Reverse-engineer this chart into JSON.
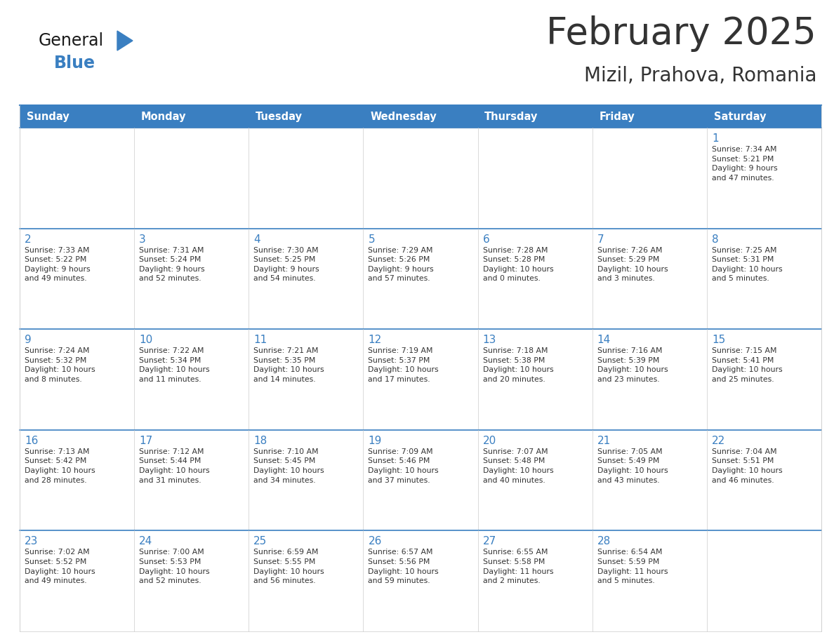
{
  "title": "February 2025",
  "subtitle": "Mizil, Prahova, Romania",
  "header_bg": "#3A7FC1",
  "header_text": "#FFFFFF",
  "cell_bg": "#FFFFFF",
  "border_color": "#3A7FC1",
  "text_color": "#333333",
  "day_number_color": "#3A7FC1",
  "days_of_week": [
    "Sunday",
    "Monday",
    "Tuesday",
    "Wednesday",
    "Thursday",
    "Friday",
    "Saturday"
  ],
  "weeks": [
    [
      {
        "day": "",
        "info": ""
      },
      {
        "day": "",
        "info": ""
      },
      {
        "day": "",
        "info": ""
      },
      {
        "day": "",
        "info": ""
      },
      {
        "day": "",
        "info": ""
      },
      {
        "day": "",
        "info": ""
      },
      {
        "day": "1",
        "info": "Sunrise: 7:34 AM\nSunset: 5:21 PM\nDaylight: 9 hours\nand 47 minutes."
      }
    ],
    [
      {
        "day": "2",
        "info": "Sunrise: 7:33 AM\nSunset: 5:22 PM\nDaylight: 9 hours\nand 49 minutes."
      },
      {
        "day": "3",
        "info": "Sunrise: 7:31 AM\nSunset: 5:24 PM\nDaylight: 9 hours\nand 52 minutes."
      },
      {
        "day": "4",
        "info": "Sunrise: 7:30 AM\nSunset: 5:25 PM\nDaylight: 9 hours\nand 54 minutes."
      },
      {
        "day": "5",
        "info": "Sunrise: 7:29 AM\nSunset: 5:26 PM\nDaylight: 9 hours\nand 57 minutes."
      },
      {
        "day": "6",
        "info": "Sunrise: 7:28 AM\nSunset: 5:28 PM\nDaylight: 10 hours\nand 0 minutes."
      },
      {
        "day": "7",
        "info": "Sunrise: 7:26 AM\nSunset: 5:29 PM\nDaylight: 10 hours\nand 3 minutes."
      },
      {
        "day": "8",
        "info": "Sunrise: 7:25 AM\nSunset: 5:31 PM\nDaylight: 10 hours\nand 5 minutes."
      }
    ],
    [
      {
        "day": "9",
        "info": "Sunrise: 7:24 AM\nSunset: 5:32 PM\nDaylight: 10 hours\nand 8 minutes."
      },
      {
        "day": "10",
        "info": "Sunrise: 7:22 AM\nSunset: 5:34 PM\nDaylight: 10 hours\nand 11 minutes."
      },
      {
        "day": "11",
        "info": "Sunrise: 7:21 AM\nSunset: 5:35 PM\nDaylight: 10 hours\nand 14 minutes."
      },
      {
        "day": "12",
        "info": "Sunrise: 7:19 AM\nSunset: 5:37 PM\nDaylight: 10 hours\nand 17 minutes."
      },
      {
        "day": "13",
        "info": "Sunrise: 7:18 AM\nSunset: 5:38 PM\nDaylight: 10 hours\nand 20 minutes."
      },
      {
        "day": "14",
        "info": "Sunrise: 7:16 AM\nSunset: 5:39 PM\nDaylight: 10 hours\nand 23 minutes."
      },
      {
        "day": "15",
        "info": "Sunrise: 7:15 AM\nSunset: 5:41 PM\nDaylight: 10 hours\nand 25 minutes."
      }
    ],
    [
      {
        "day": "16",
        "info": "Sunrise: 7:13 AM\nSunset: 5:42 PM\nDaylight: 10 hours\nand 28 minutes."
      },
      {
        "day": "17",
        "info": "Sunrise: 7:12 AM\nSunset: 5:44 PM\nDaylight: 10 hours\nand 31 minutes."
      },
      {
        "day": "18",
        "info": "Sunrise: 7:10 AM\nSunset: 5:45 PM\nDaylight: 10 hours\nand 34 minutes."
      },
      {
        "day": "19",
        "info": "Sunrise: 7:09 AM\nSunset: 5:46 PM\nDaylight: 10 hours\nand 37 minutes."
      },
      {
        "day": "20",
        "info": "Sunrise: 7:07 AM\nSunset: 5:48 PM\nDaylight: 10 hours\nand 40 minutes."
      },
      {
        "day": "21",
        "info": "Sunrise: 7:05 AM\nSunset: 5:49 PM\nDaylight: 10 hours\nand 43 minutes."
      },
      {
        "day": "22",
        "info": "Sunrise: 7:04 AM\nSunset: 5:51 PM\nDaylight: 10 hours\nand 46 minutes."
      }
    ],
    [
      {
        "day": "23",
        "info": "Sunrise: 7:02 AM\nSunset: 5:52 PM\nDaylight: 10 hours\nand 49 minutes."
      },
      {
        "day": "24",
        "info": "Sunrise: 7:00 AM\nSunset: 5:53 PM\nDaylight: 10 hours\nand 52 minutes."
      },
      {
        "day": "25",
        "info": "Sunrise: 6:59 AM\nSunset: 5:55 PM\nDaylight: 10 hours\nand 56 minutes."
      },
      {
        "day": "26",
        "info": "Sunrise: 6:57 AM\nSunset: 5:56 PM\nDaylight: 10 hours\nand 59 minutes."
      },
      {
        "day": "27",
        "info": "Sunrise: 6:55 AM\nSunset: 5:58 PM\nDaylight: 11 hours\nand 2 minutes."
      },
      {
        "day": "28",
        "info": "Sunrise: 6:54 AM\nSunset: 5:59 PM\nDaylight: 11 hours\nand 5 minutes."
      },
      {
        "day": "",
        "info": ""
      }
    ]
  ],
  "logo_color_general": "#1a1a1a",
  "logo_color_blue": "#3A7FC1",
  "logo_triangle_color": "#3A7FC1",
  "fig_width": 11.88,
  "fig_height": 9.18,
  "dpi": 100
}
